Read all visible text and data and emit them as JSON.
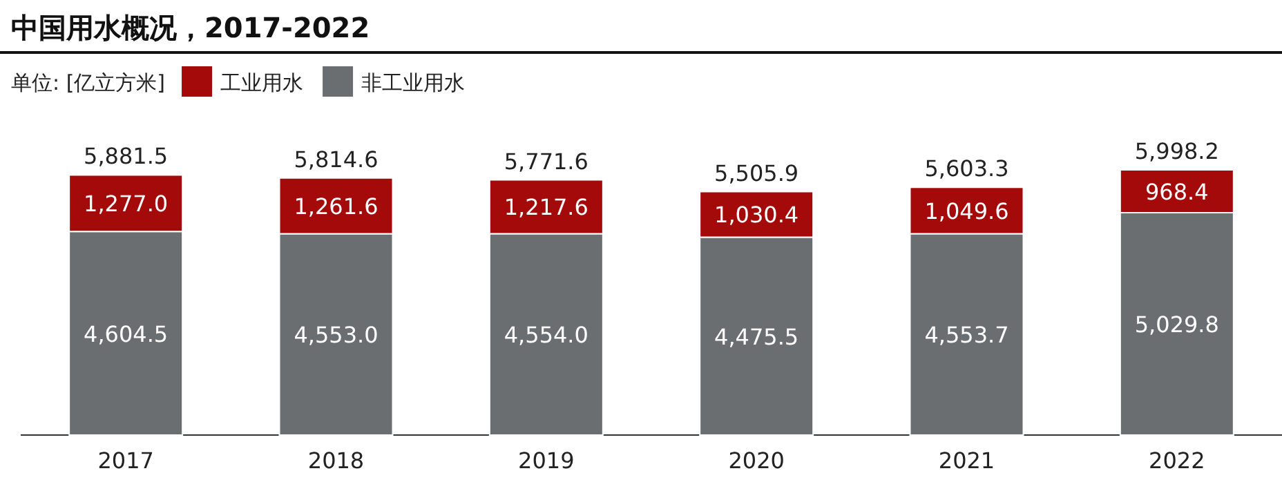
{
  "chart_data": {
    "type": "bar",
    "title": "中国用水概况，2017-2022",
    "legend_title": "单位: [亿立方米]",
    "categories": [
      "2017",
      "2018",
      "2019",
      "2020",
      "2021",
      "2022"
    ],
    "stacked": true,
    "legend": "top left",
    "series": [
      {
        "name": "非工业用水",
        "color": "#6b6e71",
        "values": [
          4604.5,
          4553.0,
          4554.0,
          4475.5,
          4553.7,
          5029.8
        ],
        "value_labels": [
          "4,604.5",
          "4,553.0",
          "4,554.0",
          "4,475.5",
          "4,553.7",
          "5,029.8"
        ]
      },
      {
        "name": "工业用水",
        "color": "#a50a0a",
        "values": [
          1277.0,
          1261.6,
          1217.6,
          1030.4,
          1049.6,
          968.4
        ],
        "value_labels": [
          "1,277.0",
          "1,261.6",
          "1,217.6",
          "1,030.4",
          "1,049.6",
          "968.4"
        ]
      }
    ],
    "totals": [
      "5,881.5",
      "5,814.6",
      "5,771.6",
      "5,505.9",
      "5,603.3",
      "5,998.2"
    ]
  }
}
